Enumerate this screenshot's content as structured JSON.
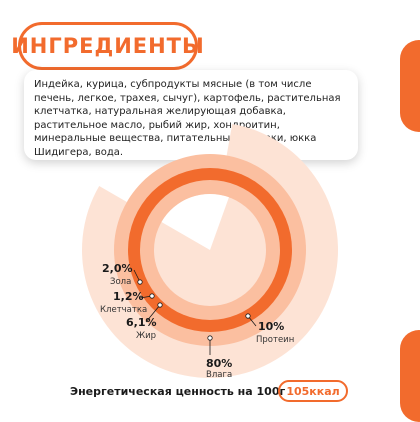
{
  "title": "ИНГРЕДИЕНТЫ",
  "ingredients_text": "Индейка, курица, субпродукты мясные (в том числе печень, легкое, трахея, сычуг), картофель, растительная клетчатка, натуральная желирующая добавка, растительное масло, рыбий жир, хондроитин, минеральные вещества, питательные добавки, юкка Шидигера, вода.",
  "energy": {
    "label": "Энергетическая ценность на 100г",
    "value": "105ккал"
  },
  "colors": {
    "accent": "#f26b2d",
    "light": "#fbbfa0",
    "pale": "#fde3d5"
  },
  "chart_data": {
    "type": "pie",
    "categories": [
      "Влага",
      "Протеин",
      "Жир",
      "Клетчатка",
      "Зола"
    ],
    "values": [
      80,
      10,
      6.1,
      1.2,
      2.0
    ],
    "value_labels": [
      "80%",
      "10%",
      "6,1%",
      "1,2%",
      "2,0%"
    ]
  }
}
